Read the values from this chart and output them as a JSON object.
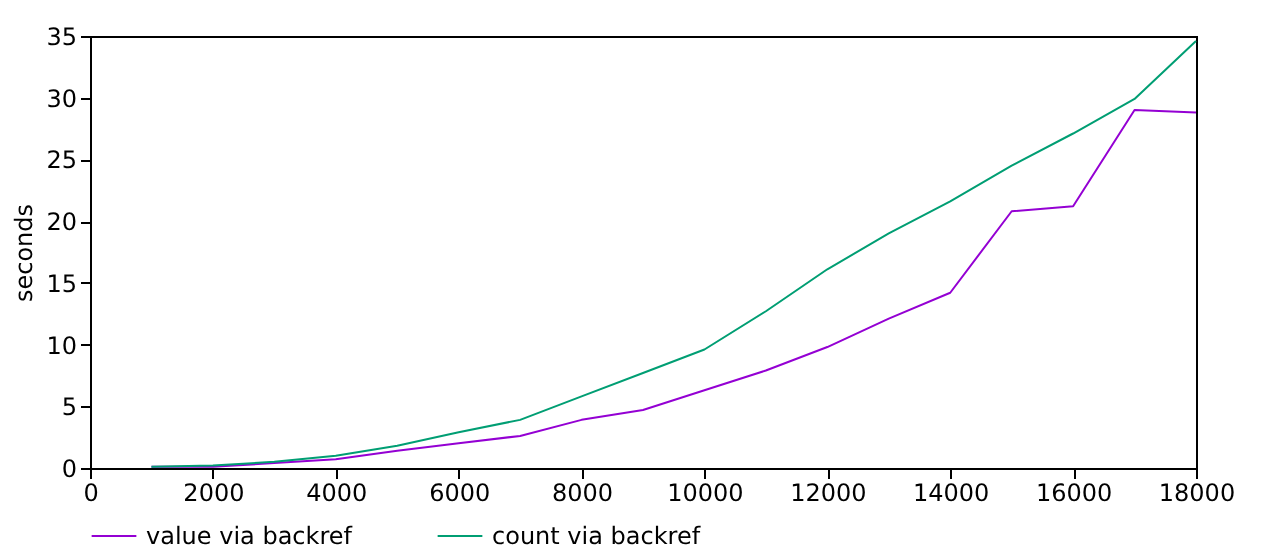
{
  "chart_data": {
    "type": "line",
    "ylabel": "seconds",
    "x": [
      1000,
      2000,
      3000,
      4000,
      5000,
      6000,
      7000,
      8000,
      9000,
      10000,
      11000,
      12000,
      13000,
      14000,
      15000,
      16000,
      17000,
      18000
    ],
    "series": [
      {
        "name": "value via backref",
        "color": "#9400d3",
        "values": [
          0.1,
          0.1,
          0.4,
          0.7,
          1.4,
          2.0,
          2.6,
          3.9,
          4.7,
          6.3,
          7.9,
          9.8,
          12.1,
          14.2,
          20.8,
          21.2,
          29.0,
          28.8
        ]
      },
      {
        "name": "count via backref",
        "color": "#009e73",
        "values": [
          0.1,
          0.2,
          0.5,
          1.0,
          1.8,
          2.9,
          3.9,
          5.8,
          7.7,
          9.6,
          12.7,
          16.1,
          19.0,
          21.6,
          24.5,
          27.1,
          29.9,
          34.6
        ]
      }
    ],
    "xlim": [
      0,
      18000
    ],
    "xticks": [
      0,
      2000,
      4000,
      6000,
      8000,
      10000,
      12000,
      14000,
      16000,
      18000
    ],
    "ylim": [
      0,
      35
    ],
    "yticks": [
      0,
      5,
      10,
      15,
      20,
      25,
      30,
      35
    ],
    "grid": false,
    "legend": "bottom",
    "marker": "none",
    "line_style": "solid"
  }
}
